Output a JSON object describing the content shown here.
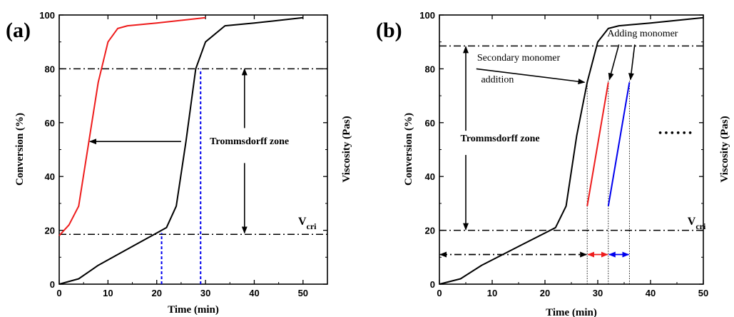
{
  "chart_data": [
    {
      "panel_label": "(a)",
      "type": "line",
      "xlabel": "Time (min)",
      "ylabel_left": "Conversion (%)",
      "ylabel_right": "Viscosity (Pas)",
      "xlim": [
        0,
        55
      ],
      "ylim": [
        0,
        100
      ],
      "xticks": [
        0,
        10,
        20,
        30,
        40,
        50
      ],
      "yticks": [
        0,
        20,
        40,
        60,
        80,
        100
      ],
      "series": [
        {
          "color": "#ee1c1c",
          "points": [
            [
              0,
              18
            ],
            [
              1,
              20
            ],
            [
              2,
              22
            ],
            [
              4,
              29
            ],
            [
              6,
              52
            ],
            [
              8,
              75
            ],
            [
              10,
              90
            ],
            [
              12,
              95
            ],
            [
              14,
              96
            ],
            [
              20,
              97
            ],
            [
              30,
              99
            ]
          ]
        },
        {
          "color": "#000000",
          "points": [
            [
              0,
              0
            ],
            [
              4,
              2
            ],
            [
              8,
              7
            ],
            [
              12,
              11
            ],
            [
              16,
              15
            ],
            [
              20,
              19
            ],
            [
              22,
              21
            ],
            [
              24,
              29
            ],
            [
              26,
              53
            ],
            [
              28,
              80
            ],
            [
              30,
              90
            ],
            [
              34,
              96
            ],
            [
              40,
              97
            ],
            [
              50,
              99
            ]
          ]
        }
      ],
      "hlines": [
        {
          "y": 80,
          "style": "dashdot"
        },
        {
          "y": 18.5,
          "style": "dashdot"
        }
      ],
      "vlines": [
        {
          "x": 21,
          "y_top": 19,
          "color": "#0000ee"
        },
        {
          "x": 29,
          "y_top": 80,
          "color": "#0000ee"
        }
      ],
      "arrows": [
        {
          "from": [
            25,
            53
          ],
          "to": [
            6.3,
            53
          ]
        },
        {
          "from": [
            38,
            58
          ],
          "to": [
            38,
            80
          ]
        },
        {
          "from": [
            38,
            45
          ],
          "to": [
            38,
            19
          ]
        }
      ],
      "annotations": [
        {
          "text": "Trommsdorff zone",
          "at": [
            39,
            52
          ]
        },
        {
          "text": "V",
          "sub": "cri",
          "at": [
            49,
            22
          ]
        }
      ]
    },
    {
      "panel_label": "(b)",
      "type": "line",
      "xlabel": "Time (min)",
      "ylabel_left": "Conversion (%)",
      "ylabel_right": "Viscosity (Pas)",
      "xlim": [
        0,
        50
      ],
      "ylim": [
        0,
        100
      ],
      "xticks": [
        0,
        10,
        20,
        30,
        40,
        50
      ],
      "yticks": [
        0,
        20,
        40,
        60,
        80,
        100
      ],
      "series": [
        {
          "color": "#000000",
          "points": [
            [
              0,
              0
            ],
            [
              4,
              2
            ],
            [
              8,
              7
            ],
            [
              12,
              11
            ],
            [
              16,
              15
            ],
            [
              20,
              19
            ],
            [
              22,
              21
            ],
            [
              24,
              29
            ],
            [
              26,
              55
            ],
            [
              28,
              75
            ],
            [
              30,
              90
            ],
            [
              32,
              95
            ],
            [
              34,
              96
            ],
            [
              40,
              97
            ],
            [
              50,
              99
            ]
          ]
        },
        {
          "color": "#ee1c1c",
          "points": [
            [
              28,
              29
            ],
            [
              32,
              75
            ]
          ]
        },
        {
          "color": "#0000ee",
          "points": [
            [
              32,
              29
            ],
            [
              36,
              75
            ]
          ]
        }
      ],
      "hlines": [
        {
          "y": 88.5,
          "style": "dashdot"
        },
        {
          "y": 20,
          "style": "dashdot"
        }
      ],
      "vlines_dotted": [
        28,
        32,
        36
      ],
      "arrows": [
        {
          "from": [
            7,
            80
          ],
          "to": [
            27.5,
            75
          ],
          "color": "#000000"
        },
        {
          "from": [
            34,
            89
          ],
          "to": [
            32.2,
            76
          ],
          "color": "#000000"
        },
        {
          "from": [
            37,
            89
          ],
          "to": [
            36.2,
            76
          ],
          "color": "#000000"
        },
        {
          "from": [
            5,
            88
          ],
          "to": [
            5,
            50
          ],
          "color": "#000000",
          "double": true,
          "mid": 50
        },
        {
          "from": [
            5,
            88.5
          ],
          "to": [
            5,
            20
          ],
          "color": "#000000",
          "double": true
        }
      ],
      "time_arrows": [
        {
          "from": 0,
          "to": 28,
          "y": 11,
          "color": "#000000",
          "style": "dashdot"
        },
        {
          "from": 28,
          "to": 32,
          "y": 11,
          "color": "#ee1c1c"
        },
        {
          "from": 32,
          "to": 36,
          "y": 11,
          "color": "#0000ee"
        }
      ],
      "dots": {
        "text": "• • • • • •",
        "at": [
          41.5,
          55
        ]
      },
      "annotations": [
        {
          "text": "Secondary monomer",
          "at": [
            15,
            83
          ]
        },
        {
          "text": "addition",
          "at": [
            11,
            75
          ]
        },
        {
          "text": "Adding monomer",
          "at": [
            38.5,
            92
          ]
        },
        {
          "text": "Trommsdorff zone",
          "at": [
            11.5,
            53
          ]
        },
        {
          "text": "V",
          "sub": "cri",
          "at": [
            47,
            22
          ]
        }
      ]
    }
  ]
}
